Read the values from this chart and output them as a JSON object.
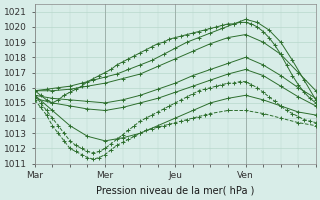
{
  "title": "",
  "xlabel": "Pression niveau de la mer( hPa )",
  "ylabel": "",
  "background_color": "#d8ede8",
  "grid_color": "#b8d8cc",
  "line_color": "#2d6e2d",
  "ylim": [
    1011,
    1021.5
  ],
  "xlim": [
    0,
    96
  ],
  "xticks": [
    0,
    24,
    48,
    72,
    96
  ],
  "xtick_labels": [
    "Mar",
    "Mer",
    "Jeu",
    "Ven",
    ""
  ],
  "yticks": [
    1011,
    1012,
    1013,
    1014,
    1015,
    1016,
    1017,
    1018,
    1019,
    1020,
    1021
  ],
  "day_lines": [
    0,
    24,
    48,
    72,
    96
  ],
  "lines": [
    {
      "x": [
        0,
        4,
        8,
        12,
        16,
        20,
        24,
        28,
        32,
        36,
        40,
        44,
        48,
        52,
        56,
        60,
        64,
        68,
        72,
        76,
        80,
        84,
        88,
        92,
        96
      ],
      "y": [
        1015.8,
        1015.9,
        1016.0,
        1016.1,
        1016.3,
        1016.5,
        1016.7,
        1016.9,
        1017.2,
        1017.5,
        1017.8,
        1018.2,
        1018.6,
        1019.0,
        1019.3,
        1019.6,
        1019.9,
        1020.2,
        1020.5,
        1020.3,
        1019.8,
        1019.0,
        1017.8,
        1016.5,
        1015.2
      ],
      "style": "solid",
      "marker": "+"
    },
    {
      "x": [
        0,
        2,
        4,
        6,
        8,
        10,
        12,
        14,
        16,
        18,
        20,
        22,
        24,
        26,
        28,
        30,
        32,
        34,
        36,
        38,
        40,
        42,
        44,
        46,
        48,
        50,
        52,
        54,
        56,
        58,
        60,
        62,
        64,
        66,
        68,
        70,
        72,
        74,
        76,
        78,
        80,
        82,
        84,
        86,
        88,
        90,
        92,
        94,
        96
      ],
      "y": [
        1015.8,
        1015.5,
        1015.2,
        1015.0,
        1015.2,
        1015.5,
        1015.7,
        1015.9,
        1016.1,
        1016.4,
        1016.6,
        1016.8,
        1017.0,
        1017.2,
        1017.5,
        1017.7,
        1017.9,
        1018.1,
        1018.3,
        1018.5,
        1018.7,
        1018.9,
        1019.0,
        1019.2,
        1019.3,
        1019.4,
        1019.5,
        1019.6,
        1019.7,
        1019.8,
        1019.9,
        1020.0,
        1020.1,
        1020.2,
        1020.2,
        1020.3,
        1020.3,
        1020.2,
        1020.0,
        1019.7,
        1019.3,
        1018.8,
        1018.2,
        1017.5,
        1016.8,
        1016.2,
        1015.7,
        1015.3,
        1015.0
      ],
      "style": "solid",
      "marker": "+"
    },
    {
      "x": [
        0,
        6,
        12,
        18,
        24,
        30,
        36,
        42,
        48,
        54,
        60,
        66,
        72,
        78,
        84,
        90,
        96
      ],
      "y": [
        1015.8,
        1015.8,
        1015.9,
        1016.1,
        1016.3,
        1016.6,
        1016.9,
        1017.4,
        1017.9,
        1018.4,
        1018.9,
        1019.3,
        1019.5,
        1019.0,
        1018.2,
        1017.0,
        1015.8
      ],
      "style": "solid",
      "marker": "+"
    },
    {
      "x": [
        0,
        6,
        12,
        18,
        24,
        30,
        36,
        42,
        48,
        54,
        60,
        66,
        72,
        78,
        84,
        90,
        96
      ],
      "y": [
        1015.5,
        1015.3,
        1015.2,
        1015.1,
        1015.0,
        1015.2,
        1015.5,
        1015.9,
        1016.3,
        1016.8,
        1017.2,
        1017.6,
        1018.0,
        1017.5,
        1016.8,
        1016.0,
        1015.3
      ],
      "style": "solid",
      "marker": "+"
    },
    {
      "x": [
        0,
        6,
        12,
        18,
        24,
        30,
        36,
        42,
        48,
        54,
        60,
        66,
        72,
        78,
        84,
        90,
        96
      ],
      "y": [
        1015.3,
        1015.0,
        1014.8,
        1014.6,
        1014.5,
        1014.7,
        1015.0,
        1015.3,
        1015.7,
        1016.1,
        1016.5,
        1016.9,
        1017.2,
        1016.8,
        1016.1,
        1015.4,
        1014.8
      ],
      "style": "solid",
      "marker": "+"
    },
    {
      "x": [
        0,
        6,
        12,
        18,
        24,
        30,
        36,
        42,
        48,
        54,
        60,
        66,
        72,
        78,
        84,
        90,
        96
      ],
      "y": [
        1015.5,
        1014.5,
        1013.5,
        1012.8,
        1012.5,
        1012.7,
        1013.0,
        1013.5,
        1014.0,
        1014.5,
        1015.0,
        1015.3,
        1015.5,
        1015.2,
        1014.8,
        1014.4,
        1014.2
      ],
      "style": "solid",
      "marker": "+"
    },
    {
      "x": [
        0,
        2,
        4,
        6,
        8,
        10,
        12,
        14,
        16,
        18,
        20,
        22,
        24,
        26,
        28,
        30,
        32,
        34,
        36,
        38,
        40,
        42,
        44,
        46,
        48,
        50,
        52,
        54,
        56,
        58,
        60,
        62,
        64,
        66,
        68,
        70,
        72,
        74,
        76,
        78,
        80,
        82,
        84,
        86,
        88,
        90,
        92,
        94,
        96
      ],
      "y": [
        1015.5,
        1015.0,
        1014.5,
        1014.0,
        1013.5,
        1013.0,
        1012.5,
        1012.2,
        1012.0,
        1011.8,
        1011.7,
        1011.8,
        1012.0,
        1012.3,
        1012.6,
        1012.9,
        1013.2,
        1013.5,
        1013.8,
        1014.0,
        1014.2,
        1014.4,
        1014.6,
        1014.8,
        1015.0,
        1015.2,
        1015.4,
        1015.6,
        1015.8,
        1015.9,
        1016.0,
        1016.1,
        1016.2,
        1016.3,
        1016.3,
        1016.4,
        1016.4,
        1016.2,
        1016.0,
        1015.7,
        1015.4,
        1015.1,
        1014.8,
        1014.5,
        1014.3,
        1014.1,
        1013.9,
        1013.8,
        1013.7
      ],
      "style": "dashed",
      "marker": "+"
    },
    {
      "x": [
        0,
        2,
        4,
        6,
        8,
        10,
        12,
        14,
        16,
        18,
        20,
        22,
        24,
        26,
        28,
        30,
        32,
        34,
        36,
        38,
        40,
        42,
        44,
        46,
        48,
        50,
        52,
        54,
        56,
        58,
        60,
        66,
        72,
        78,
        84,
        90,
        96
      ],
      "y": [
        1015.2,
        1014.7,
        1014.2,
        1013.5,
        1013.0,
        1012.5,
        1012.0,
        1011.8,
        1011.6,
        1011.4,
        1011.3,
        1011.4,
        1011.6,
        1011.9,
        1012.2,
        1012.4,
        1012.6,
        1012.8,
        1013.0,
        1013.2,
        1013.3,
        1013.4,
        1013.5,
        1013.6,
        1013.7,
        1013.8,
        1013.9,
        1014.0,
        1014.1,
        1014.2,
        1014.3,
        1014.5,
        1014.5,
        1014.3,
        1014.0,
        1013.7,
        1013.5
      ],
      "style": "dashed",
      "marker": "+"
    }
  ],
  "font_size_axis": 7,
  "font_size_tick": 6.5
}
